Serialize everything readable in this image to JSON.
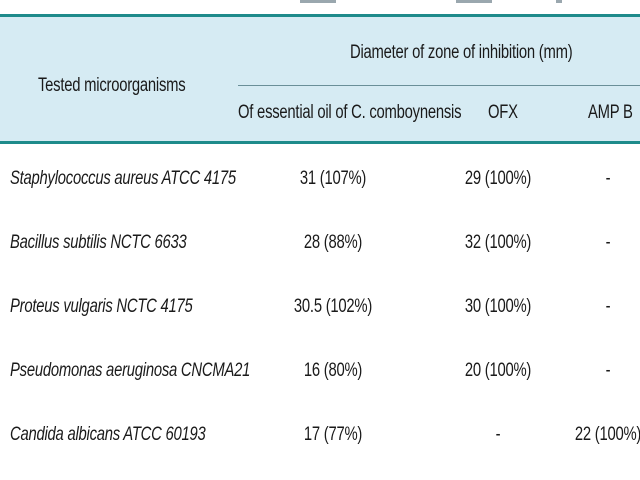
{
  "table": {
    "header": {
      "col_organism": "Tested microorganisms",
      "group_label": "Diameter of zone of inhibition (mm)",
      "col_oil": "Of essential oil of C. comboynensis",
      "col_ofx": "OFX",
      "col_ampb": "AMP B"
    },
    "rows": [
      {
        "organism": "Staphylococcus aureus ATCC 4175",
        "oil": "31 (107%)",
        "ofx": "29 (100%)",
        "ampb": "-"
      },
      {
        "organism": "Bacillus subtilis NCTC 6633",
        "oil": "28 (88%)",
        "ofx": "32 (100%)",
        "ampb": "-"
      },
      {
        "organism": "Proteus vulgaris NCTC 4175",
        "oil": "30.5 (102%)",
        "ofx": "30 (100%)",
        "ampb": "-"
      },
      {
        "organism": "Pseudomonas aeruginosa CNCMA21",
        "oil": "16 (80%)",
        "ofx": "20 (100%)",
        "ampb": "-"
      },
      {
        "organism": "Candida albicans ATCC 60193",
        "oil": "17 (77%)",
        "ofx": "-",
        "ampb": "22 (100%)"
      }
    ]
  },
  "colors": {
    "header_fill": "#d6ebf3",
    "rule": "#1e8b8b"
  }
}
